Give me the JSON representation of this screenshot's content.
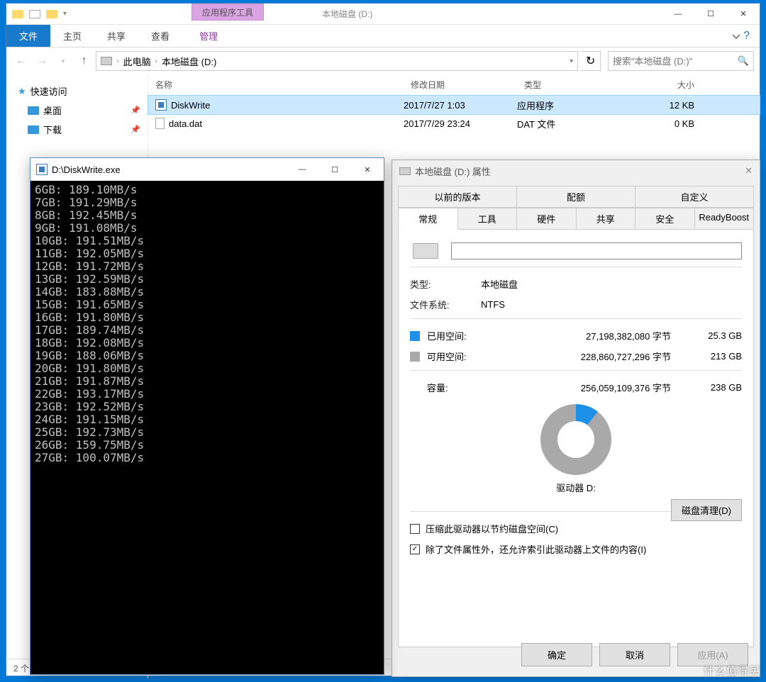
{
  "explorer": {
    "ctx_group": "应用程序工具",
    "title": "本地磁盘 (D:)",
    "ribbon": {
      "file": "文件",
      "home": "主页",
      "share": "共享",
      "view": "查看",
      "manage": "管理"
    },
    "breadcrumb": {
      "pc": "此电脑",
      "drive": "本地磁盘 (D:)"
    },
    "search_placeholder": "搜索\"本地磁盘 (D:)\"",
    "nav": {
      "quick": "快速访问",
      "desktop": "桌面",
      "downloads": "下载"
    },
    "columns": {
      "name": "名称",
      "date": "修改日期",
      "type": "类型",
      "size": "大小"
    },
    "files": [
      {
        "name": "DiskWrite",
        "date": "2017/7/27 1:03",
        "type": "应用程序",
        "size": "12 KB",
        "icon": "exe",
        "selected": true
      },
      {
        "name": "data.dat",
        "date": "2017/7/29 23:24",
        "type": "DAT 文件",
        "size": "0 KB",
        "icon": "file",
        "selected": false
      }
    ],
    "status": "2 个"
  },
  "console": {
    "title": "D:\\DiskWrite.exe",
    "lines": [
      "6GB: 189.10MB/s",
      "7GB: 191.29MB/s",
      "8GB: 192.45MB/s",
      "9GB: 191.08MB/s",
      "10GB: 191.51MB/s",
      "11GB: 192.05MB/s",
      "12GB: 191.72MB/s",
      "13GB: 192.59MB/s",
      "14GB: 183.88MB/s",
      "15GB: 191.65MB/s",
      "16GB: 191.80MB/s",
      "17GB: 189.74MB/s",
      "18GB: 192.08MB/s",
      "19GB: 188.06MB/s",
      "20GB: 191.80MB/s",
      "21GB: 191.87MB/s",
      "22GB: 193.17MB/s",
      "23GB: 192.52MB/s",
      "24GB: 191.15MB/s",
      "25GB: 192.73MB/s",
      "26GB: 159.75MB/s",
      "27GB: 100.07MB/s"
    ]
  },
  "props": {
    "title": "本地磁盘 (D:) 属性",
    "tabs_upper": [
      "以前的版本",
      "配额",
      "自定义"
    ],
    "tabs_lower": [
      "常规",
      "工具",
      "硬件",
      "共享",
      "安全",
      "ReadyBoost"
    ],
    "active_tab": "常规",
    "type_lbl": "类型:",
    "type_val": "本地磁盘",
    "fs_lbl": "文件系统:",
    "fs_val": "NTFS",
    "used_lbl": "已用空间:",
    "used_bytes": "27,198,382,080 字节",
    "used_gb": "25.3 GB",
    "free_lbl": "可用空间:",
    "free_bytes": "228,860,727,296 字节",
    "free_gb": "213 GB",
    "cap_lbl": "容量:",
    "cap_bytes": "256,059,109,376 字节",
    "cap_gb": "238 GB",
    "used_color": "#1e90e8",
    "free_color": "#a9a9a9",
    "used_deg": 38,
    "drive_label": "驱动器 D:",
    "cleanup": "磁盘清理(D)",
    "compress": "压缩此驱动器以节约磁盘空间(C)",
    "index": "除了文件属性外，还允许索引此驱动器上文件的内容(I)",
    "ok": "确定",
    "cancel": "取消",
    "apply": "应用(A)"
  },
  "watermark": "什么值得买"
}
